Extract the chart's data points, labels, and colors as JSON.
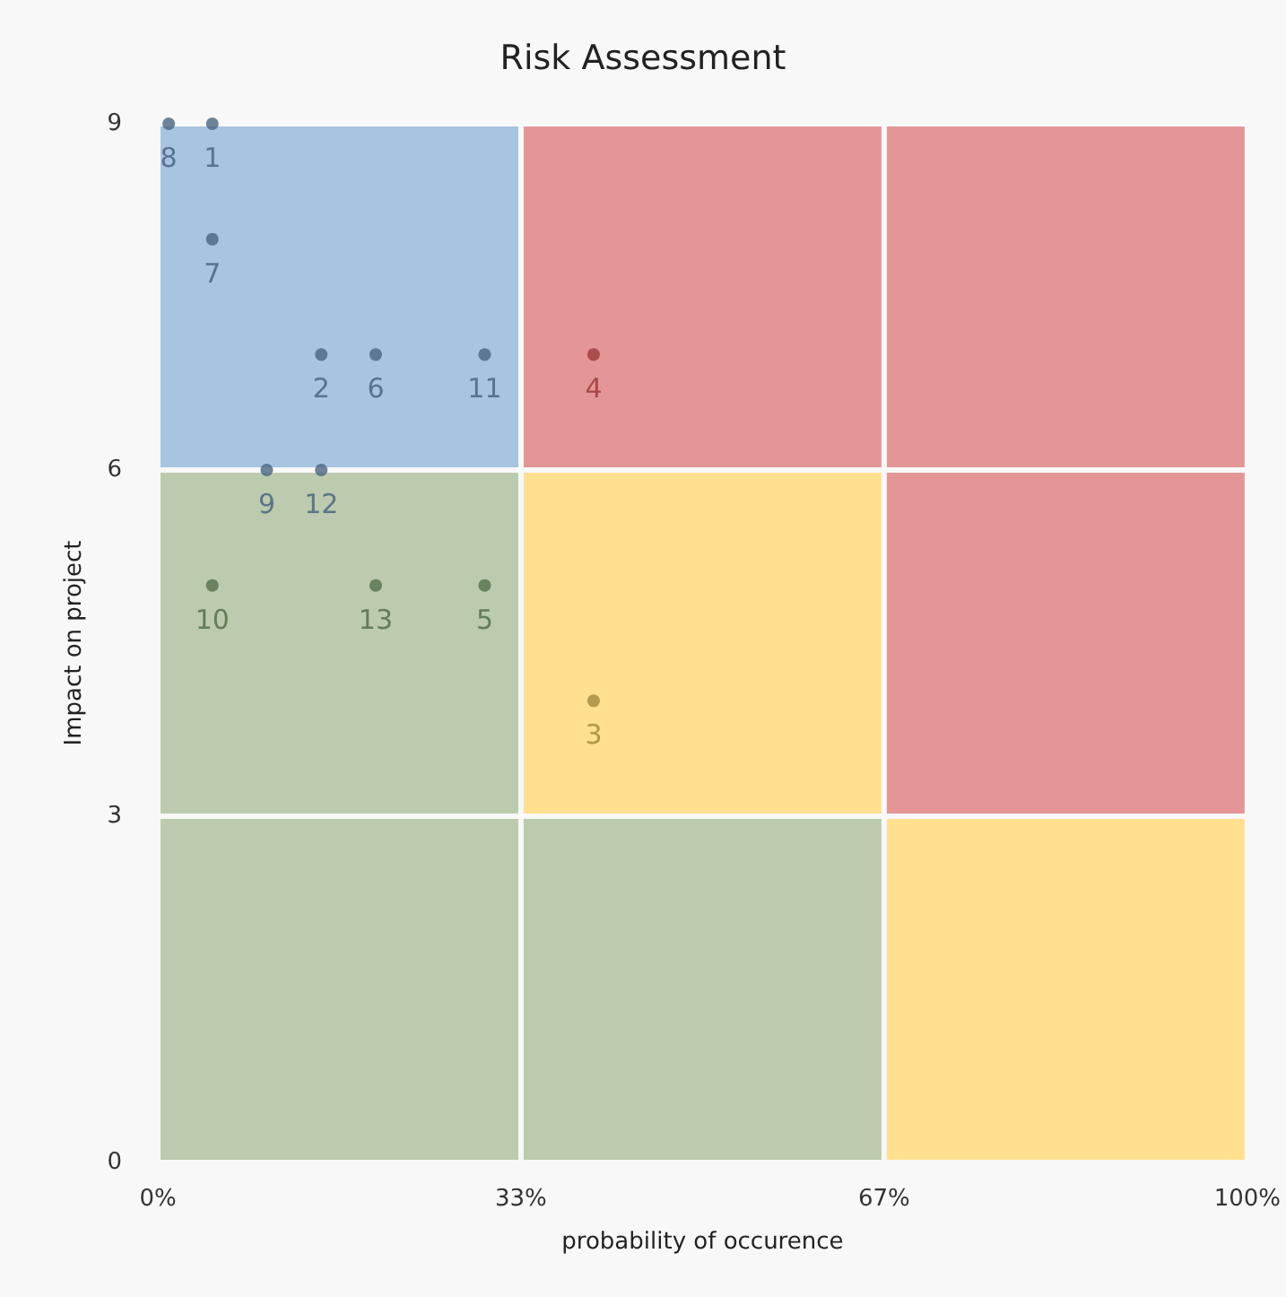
{
  "chart_data": {
    "type": "scatter",
    "title": "Risk Assessment",
    "xlabel": "probability of occurence",
    "ylabel": "Impact on project",
    "series": [
      {
        "name": "8",
        "color": "#4a6582",
        "x": [
          1
        ],
        "values": [
          9
        ]
      },
      {
        "name": "1",
        "color": "#4a6582",
        "x": [
          5
        ],
        "values": [
          9
        ]
      },
      {
        "name": "7",
        "color": "#4a6582",
        "x": [
          5
        ],
        "values": [
          8
        ]
      },
      {
        "name": "2",
        "color": "#4a6582",
        "x": [
          15
        ],
        "values": [
          7
        ]
      },
      {
        "name": "6",
        "color": "#4a6582",
        "x": [
          20
        ],
        "values": [
          7
        ]
      },
      {
        "name": "11",
        "color": "#4a6582",
        "x": [
          30
        ],
        "values": [
          7
        ]
      },
      {
        "name": "4",
        "color": "#9e3a3a",
        "x": [
          40
        ],
        "values": [
          7
        ]
      },
      {
        "name": "9",
        "color": "#4a6582",
        "x": [
          10
        ],
        "values": [
          6
        ]
      },
      {
        "name": "12",
        "color": "#4a6582",
        "x": [
          15
        ],
        "values": [
          6
        ]
      },
      {
        "name": "10",
        "color": "#55704a",
        "x": [
          5
        ],
        "values": [
          5
        ]
      },
      {
        "name": "13",
        "color": "#55704a",
        "x": [
          20
        ],
        "values": [
          5
        ]
      },
      {
        "name": "5",
        "color": "#55704a",
        "x": [
          30
        ],
        "values": [
          5
        ]
      },
      {
        "name": "3",
        "color": "#a08a3a",
        "x": [
          40
        ],
        "values": [
          4
        ]
      }
    ],
    "xlim": [
      0,
      100
    ],
    "xticks": [
      {
        "value": 0,
        "label": "0%"
      },
      {
        "value": 33.333,
        "label": "33%"
      },
      {
        "value": 66.667,
        "label": "67%"
      },
      {
        "value": 100,
        "label": "100%"
      }
    ],
    "ylim": [
      0,
      9
    ],
    "yticks": [
      0,
      3,
      6,
      9
    ],
    "grid": false,
    "marker": "circle"
  }
}
